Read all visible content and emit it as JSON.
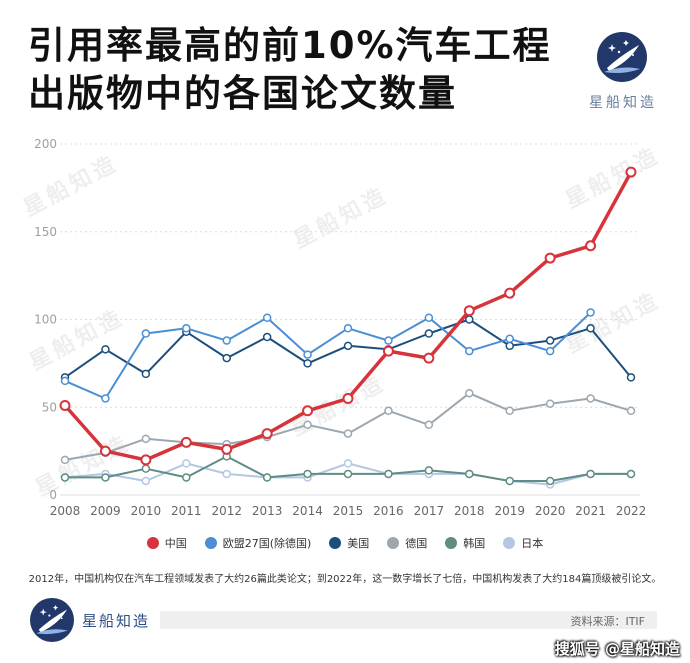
{
  "header": {
    "brand_name": "星船知造",
    "logo_icon": "quill-ship-logo-icon"
  },
  "chart_data": {
    "type": "line",
    "title_lines": [
      "引用率最高的前10%汽车工程",
      "出版物中的各国论文数量"
    ],
    "categories": [
      "2008",
      "2009",
      "2010",
      "2011",
      "2012",
      "2013",
      "2014",
      "2015",
      "2016",
      "2017",
      "2018",
      "2019",
      "2020",
      "2021",
      "2022"
    ],
    "ylim": [
      0,
      200
    ],
    "yticks": [
      0,
      50,
      100,
      150,
      200
    ],
    "grid": "horizontal-dashed",
    "legend": "bottom",
    "series": [
      {
        "name": "中国",
        "color": "#d7333b",
        "values": [
          51,
          25,
          20,
          30,
          26,
          35,
          48,
          55,
          82,
          78,
          105,
          115,
          135,
          142,
          184
        ]
      },
      {
        "name": "欧盟27国(除德国)",
        "color": "#4a8fd6",
        "values": [
          65,
          55,
          92,
          95,
          88,
          101,
          80,
          95,
          88,
          101,
          82,
          89,
          82,
          104,
          null
        ]
      },
      {
        "name": "美国",
        "color": "#1d4f7d",
        "values": [
          67,
          83,
          69,
          93,
          78,
          90,
          75,
          85,
          83,
          92,
          100,
          85,
          88,
          95,
          67
        ]
      },
      {
        "name": "德国",
        "color": "#9ca7b0",
        "values": [
          20,
          24,
          32,
          30,
          29,
          33,
          40,
          35,
          48,
          40,
          58,
          48,
          52,
          55,
          48
        ]
      },
      {
        "name": "韩国",
        "color": "#5f8d84",
        "values": [
          10,
          10,
          15,
          10,
          22,
          10,
          12,
          12,
          12,
          14,
          12,
          8,
          8,
          12,
          12
        ]
      },
      {
        "name": "日本",
        "color": "#b3c7e3",
        "values": [
          10,
          12,
          8,
          18,
          12,
          10,
          10,
          18,
          12,
          12,
          12,
          8,
          6,
          12,
          12
        ]
      }
    ],
    "footnote": "2012年，中国机构仅在汽车工程领域发表了大约26篇此类论文；到2022年，这一数字增长了七倍，中国机构发表了大约184篇顶级被引论文。"
  },
  "watermark": {
    "text": "星船知造"
  },
  "footer": {
    "brand_name": "星船知造",
    "source": "资料来源：ITIF",
    "platform_mark": "搜狐号 @星船知造"
  }
}
